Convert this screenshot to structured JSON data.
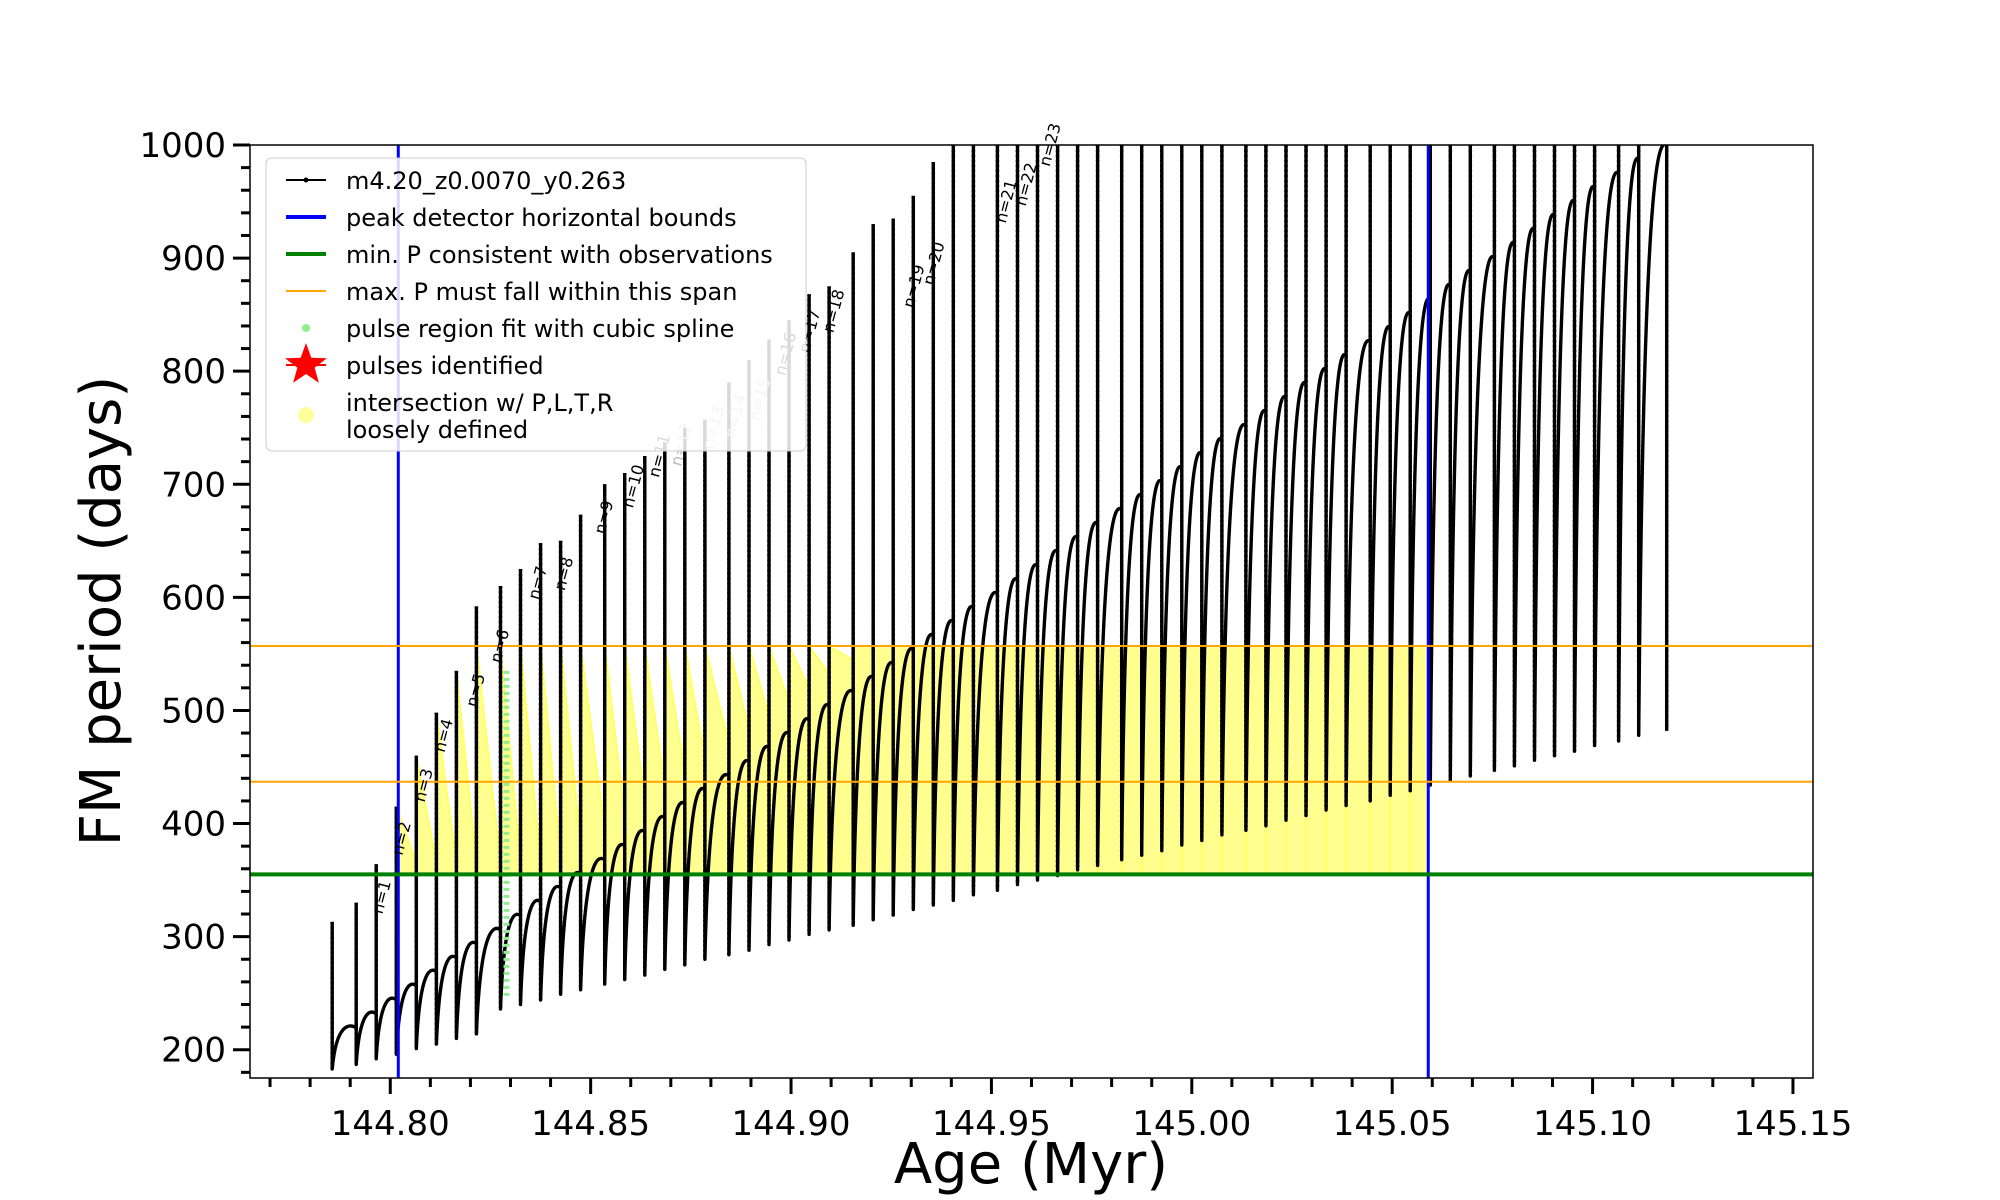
{
  "chart_data": {
    "type": "line",
    "xlabel": "Age (Myr)",
    "ylabel": "FM period (days)",
    "xlim": [
      144.765,
      145.155
    ],
    "ylim": [
      175,
      1000
    ],
    "xticks": [
      144.8,
      144.85,
      144.9,
      144.95,
      145.0,
      145.05,
      145.1,
      145.15
    ],
    "xtick_labels": [
      "144.80",
      "144.85",
      "144.90",
      "144.95",
      "145.00",
      "145.05",
      "145.10",
      "145.15"
    ],
    "yticks": [
      200,
      300,
      400,
      500,
      600,
      700,
      800,
      900,
      1000
    ],
    "ytick_labels": [
      "200",
      "300",
      "400",
      "500",
      "600",
      "700",
      "800",
      "900",
      "1000"
    ],
    "grid": false,
    "legend_placement": "top-left",
    "legend": [
      {
        "label": "m4.20_z0.0070_y0.263",
        "style": "line-dot",
        "color": "#000000"
      },
      {
        "label": "peak detector horizontal bounds",
        "style": "line",
        "color": "#0000ff"
      },
      {
        "label": "min. P consistent with observations",
        "style": "line",
        "color": "#008000"
      },
      {
        "label": "max. P must fall within this span",
        "style": "line",
        "color": "#ffa500"
      },
      {
        "label": "pulse region fit with cubic spline",
        "style": "dot",
        "color": "#90ee90"
      },
      {
        "label": "pulses identified",
        "style": "star",
        "color": "#ff0000"
      },
      {
        "label": "intersection w/ P,L,T,R",
        "style": "circle",
        "color": "#ffff99"
      },
      {
        "label": "loosely defined",
        "style": "none",
        "color": "#ffff99"
      }
    ],
    "vertical_lines": [
      144.802,
      145.059
    ],
    "min_period_line": 355,
    "max_period_span": [
      437,
      557
    ],
    "spline_pulse_age": 144.829,
    "series": [
      {
        "name": "m4.20_z0.0070_y0.263",
        "color": "#000000",
        "pulse_ages": [
          144.7855,
          144.7915,
          144.7965,
          144.8015,
          144.8065,
          144.8115,
          144.8165,
          144.8215,
          144.8275,
          144.8325,
          144.8375,
          144.8425,
          144.8475,
          144.8535,
          144.8585,
          144.8635,
          144.8685,
          144.8735,
          144.8785,
          144.8845,
          144.8895,
          144.8945,
          144.8995,
          144.9045,
          144.9095,
          144.9155,
          144.9205,
          144.9255,
          144.9305,
          144.9355,
          144.9405,
          144.9455,
          144.9515,
          144.9565,
          144.9615,
          144.9665,
          144.9715,
          144.9765,
          144.9825,
          144.9875,
          144.9925,
          144.9975,
          145.0025,
          145.0075,
          145.0135,
          145.0185,
          145.0235,
          145.0285,
          145.0335,
          145.0385,
          145.0445,
          145.0495,
          145.0545,
          145.0595,
          145.0645,
          145.0695,
          145.0755,
          145.0805,
          145.0855,
          145.0905,
          145.0955,
          145.1005,
          145.1065,
          145.1115,
          145.1185
        ],
        "pulse_min_periods": [
          183,
          187,
          192,
          196,
          201,
          205,
          210,
          214,
          236,
          240,
          244,
          249,
          253,
          258,
          262,
          266,
          271,
          275,
          280,
          284,
          288,
          293,
          297,
          302,
          306,
          310,
          315,
          319,
          324,
          328,
          332,
          337,
          341,
          346,
          350,
          354,
          359,
          363,
          368,
          372,
          376,
          381,
          385,
          390,
          394,
          398,
          403,
          407,
          412,
          416,
          420,
          425,
          429,
          434,
          438,
          442,
          447,
          451,
          456,
          460,
          464,
          469,
          473,
          478,
          482
        ],
        "pulse_peak_periods": [
          313,
          330,
          364,
          415,
          460,
          498,
          535,
          592,
          610,
          625,
          648,
          650,
          673,
          700,
          710,
          725,
          737,
          750,
          757,
          790,
          810,
          828,
          845,
          868,
          875,
          905,
          930,
          935,
          955,
          985,
          1000,
          1000,
          1000,
          1000,
          1000,
          1000,
          1000,
          1000,
          1000,
          1000,
          1000,
          1000,
          1000,
          1000,
          1000,
          1000,
          1000,
          1000,
          1000,
          1000,
          1000,
          1000,
          1000,
          1000,
          1000,
          1000,
          1000,
          1000,
          1000,
          1000,
          1000,
          1000,
          1000,
          1000,
          1000
        ],
        "baseline_start": [
          144.7855,
          207
        ],
        "baseline_end": [
          145.1185,
          1000
        ]
      }
    ],
    "pulse_labels": [
      "n=1",
      "n=2",
      "n=3",
      "n=4",
      "n=5",
      "n=6",
      "n=7",
      "n=8",
      "n=9",
      "n=10",
      "n=11",
      "n=12",
      "n=13",
      "n=14",
      "n=15",
      "n=16",
      "n=17",
      "n=18",
      "n=19",
      "n=20",
      "n=21",
      "n=22",
      "n=23"
    ],
    "pulse_label_ages": [
      144.798,
      144.803,
      144.8085,
      144.8135,
      144.8215,
      144.8275,
      144.837,
      144.8435,
      144.8535,
      144.8605,
      144.867,
      144.8725,
      144.8805,
      144.886,
      144.892,
      144.8985,
      144.9045,
      144.9105,
      144.9305,
      144.9355,
      144.9535,
      144.9585,
      144.9645
    ],
    "pulse_label_periods": [
      314,
      366,
      413,
      457,
      497,
      536,
      592,
      600,
      650,
      673,
      700,
      710,
      725,
      735,
      750,
      790,
      810,
      828,
      850,
      870,
      925,
      940,
      975
    ],
    "pulse_label_faded": [
      false,
      false,
      false,
      false,
      false,
      false,
      false,
      false,
      false,
      false,
      false,
      true,
      true,
      true,
      true,
      false,
      false,
      false,
      false,
      false,
      false,
      false,
      false
    ],
    "intersection_region": {
      "age_start": 144.8,
      "age_end": 145.059,
      "period_min": 355,
      "period_max": 557
    }
  }
}
